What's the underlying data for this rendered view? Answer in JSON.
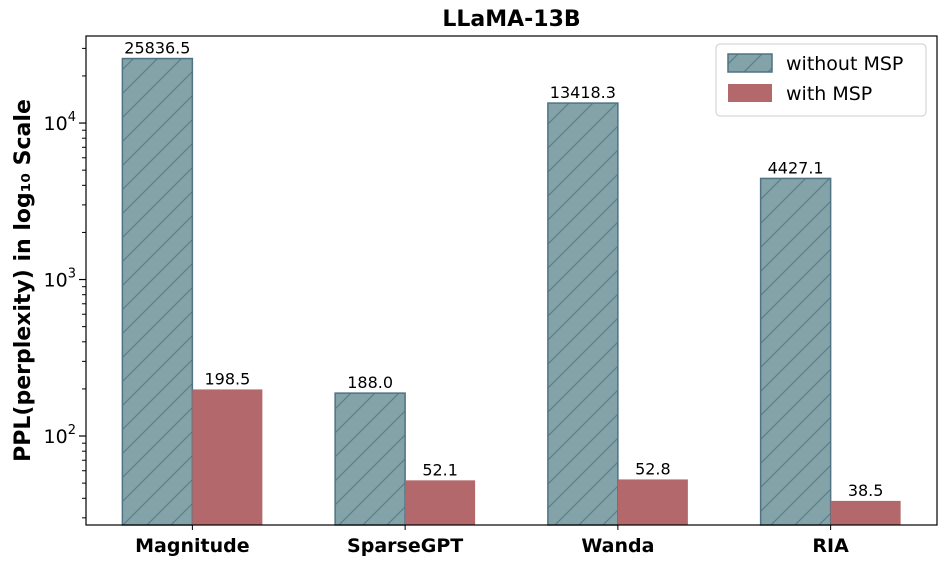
{
  "chart_data": {
    "type": "bar",
    "title": "LLaMA-13B",
    "ylabel": "PPL(perplexity) in log₁₀ Scale",
    "xlabel": "",
    "yscale": "log",
    "ylim": [
      27,
      36000
    ],
    "yticks": [
      {
        "value": 100,
        "base": "10",
        "exp": "2"
      },
      {
        "value": 1000,
        "base": "10",
        "exp": "3"
      },
      {
        "value": 10000,
        "base": "10",
        "exp": "4"
      }
    ],
    "categories": [
      "Magnitude",
      "SparseGPT",
      "Wanda",
      "RIA"
    ],
    "series": [
      {
        "name": "without MSP",
        "values": [
          25836.5,
          188.0,
          13418.3,
          4427.1
        ],
        "labels": [
          "25836.5",
          "188.0",
          "13418.3",
          "4427.1"
        ],
        "color": "#84a3a8",
        "edge_color": "#4f7384",
        "hatch": "diagonal"
      },
      {
        "name": "with MSP",
        "values": [
          198.5,
          52.1,
          52.8,
          38.5
        ],
        "labels": [
          "198.5",
          "52.1",
          "52.8",
          "38.5"
        ],
        "color": "#b3686b",
        "edge_color": "#b3686b",
        "hatch": "none"
      }
    ],
    "legend": "top-right",
    "grid": false
  }
}
